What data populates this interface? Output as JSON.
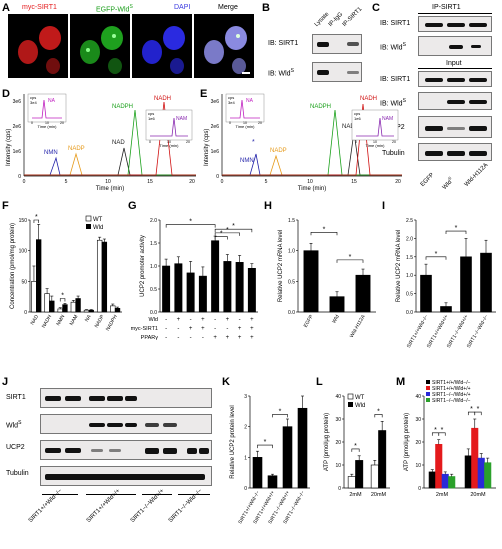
{
  "panels": {
    "A": {
      "letter": "A",
      "labels": [
        "myc-SIRT1",
        "EGFP-Wld",
        "DAPI",
        "Merge"
      ],
      "sup": "S"
    },
    "B": {
      "letter": "B",
      "cols": [
        "Lysate",
        "IP-IgG",
        "IP-SIRT1"
      ],
      "rows": [
        "IB: SIRT1",
        "IB: Wld"
      ],
      "sup": "S"
    },
    "C": {
      "letter": "C",
      "header": "IP-SIRT1",
      "input": "Input",
      "rows": [
        "IB: SIRT1",
        "IB: Wld",
        "IB: SIRT1",
        "IB: Wld",
        "UCP2",
        "Tubulin"
      ],
      "cols": [
        "EGFP",
        "Wld",
        "Wld-H112A"
      ],
      "sup": "S"
    },
    "D": {
      "letter": "D",
      "ylabel": "Intensity (cps)",
      "xlabel": "Time (min)",
      "peaks": [
        "NMN",
        "NADP",
        "NAD",
        "NADPH",
        "NADH"
      ],
      "inset1": {
        "unit": "cps",
        "scale": "3e4",
        "peak": "NA",
        "xlabel": "Time (min)",
        "ticks": [
          "0",
          "10",
          "20"
        ]
      },
      "inset2": {
        "unit": "cps",
        "scale": "1e6",
        "peak": "NAM",
        "xlabel": "Time (min)",
        "ticks": [
          "0",
          "10",
          "20"
        ]
      },
      "yticks": [
        "0",
        "1e6",
        "2e6",
        "3e6"
      ],
      "xticks": [
        "0",
        "5",
        "10",
        "15",
        "20"
      ]
    },
    "E": {
      "letter": "E",
      "ylabel": "Intensity (cps)",
      "xlabel": "Time (min)",
      "peaks": [
        "NMN",
        "NADP",
        "NAD",
        "NADPH",
        "NADH"
      ],
      "inset1": {
        "unit": "cps",
        "scale": "3e4",
        "peak": "NA",
        "xlabel": "Time (min)",
        "ticks": [
          "0",
          "10",
          "20"
        ]
      },
      "inset2": {
        "unit": "cps",
        "scale": "1e6",
        "peak": "NAM",
        "xlabel": "Time (min)",
        "ticks": [
          "0",
          "10",
          "20"
        ]
      },
      "yticks": [
        "0",
        "1e6",
        "2e6",
        "3e6"
      ],
      "xticks": [
        "0",
        "5",
        "10",
        "15",
        "20"
      ],
      "marker": "*"
    },
    "F": {
      "letter": "F",
      "ylabel": "Concentration (pmol/mg protein)",
      "legend": [
        "WT",
        "Wld"
      ],
      "sup": "S",
      "star": "*"
    },
    "G": {
      "letter": "G",
      "ylabel": "UCP2 promoter activity",
      "rowlabels": [
        "Wld",
        "myc-SIRT1",
        "PPARγ"
      ],
      "sup": "S",
      "star": "*"
    },
    "H": {
      "letter": "H",
      "ylabel": "Relative UCP2 mRNA level",
      "star": "*"
    },
    "I": {
      "letter": "I",
      "ylabel": "Relative UCP2 mRNA level",
      "star": "*"
    },
    "J": {
      "letter": "J",
      "rows": [
        "SIRT1",
        "Wld",
        "UCP2",
        "Tubulin"
      ],
      "groups": [
        "SIRT1+/+Wld−/−",
        "SIRT1+/+Wld+/+",
        "SIRT1−/−Wld+/+",
        "SIRT1−/−Wld−/−"
      ],
      "sup": "S"
    },
    "K": {
      "letter": "K",
      "ylabel": "Relative UCP2 protein level",
      "star": "*"
    },
    "L": {
      "letter": "L",
      "ylabel": "ATP (pmol/μg protein)",
      "legend": [
        "WT",
        "Wld"
      ],
      "sup": "S",
      "star": "*"
    },
    "M": {
      "letter": "M",
      "ylabel": "ATP (pmol/μg protein)",
      "legend": [
        "SIRT1+/+/Wld−/−",
        "SIRT1+/+/Wld+/+",
        "SIRT1−/−/Wld+/+",
        "SIRT1−/−/Wld−/−"
      ],
      "colors": [
        "#000000",
        "#e41a1c",
        "#2a2ad8",
        "#2aa02a"
      ],
      "star": "*"
    }
  },
  "chart_data": [
    {
      "type": "bar",
      "panel": "F",
      "categories": [
        "NAD",
        "NADH",
        "NMN",
        "NAM",
        "NA",
        "NADP",
        "NADPH"
      ],
      "ylabel": "Concentration (pmol/mg protein)",
      "ylim": [
        0,
        150
      ],
      "yticks": [
        "0",
        "50",
        "100",
        "150"
      ],
      "series": [
        {
          "name": "WT",
          "values": [
            50,
            30,
            5,
            16,
            3,
            117,
            10
          ],
          "err": [
            25,
            8,
            2,
            3,
            1,
            5,
            3
          ]
        },
        {
          "name": "Wld",
          "values": [
            118,
            18,
            12,
            22,
            3,
            114,
            6
          ],
          "err": [
            25,
            8,
            2,
            4,
            1,
            5,
            2
          ]
        }
      ]
    },
    {
      "type": "bar",
      "panel": "G",
      "ylabel": "UCP2 promoter activity",
      "ylim": [
        0,
        2.0
      ],
      "yticks": [
        "0.0",
        "0.5",
        "1.0",
        "1.5",
        "2.0"
      ],
      "rows": {
        "Wld": [
          "-",
          "+",
          "-",
          "+",
          "-",
          "+",
          "-",
          "+"
        ],
        "myc-SIRT1": [
          "-",
          "-",
          "+",
          "+",
          "-",
          "-",
          "+",
          "+"
        ],
        "PPARγ": [
          "-",
          "-",
          "-",
          "-",
          "+",
          "+",
          "+",
          "+"
        ]
      },
      "values": [
        1.0,
        1.05,
        0.85,
        0.78,
        1.55,
        1.1,
        1.08,
        0.95
      ],
      "err": [
        0.15,
        0.15,
        0.25,
        0.2,
        0.1,
        0.15,
        0.15,
        0.1
      ]
    },
    {
      "type": "bar",
      "panel": "H",
      "categories": [
        "EGFP",
        "Wld",
        "Wld-H112A"
      ],
      "ylabel": "Relative UCP2 mRNA level",
      "ylim": [
        0,
        1.5
      ],
      "yticks": [
        "0.0",
        "0.5",
        "1.0",
        "1.5"
      ],
      "values": [
        1.0,
        0.25,
        0.6
      ],
      "err": [
        0.12,
        0.08,
        0.1
      ]
    },
    {
      "type": "bar",
      "panel": "I",
      "categories": [
        "SIRT1+/+Wld−/−",
        "SIRT1+/+Wld+/+",
        "SIRT1−/−Wld+/+",
        "SIRT1−/−Wld−/−"
      ],
      "ylabel": "Relative UCP2 mRNA level",
      "ylim": [
        0,
        2.5
      ],
      "yticks": [
        "0.0",
        "0.5",
        "1.0",
        "1.5",
        "2.0",
        "2.5"
      ],
      "values": [
        1.0,
        0.15,
        1.5,
        1.6
      ],
      "err": [
        0.3,
        0.1,
        0.5,
        0.35
      ]
    },
    {
      "type": "bar",
      "panel": "K",
      "categories": [
        "SIRT1+/+Wld−/−",
        "SIRT1+/+Wld+/+",
        "SIRT1−/−Wld+/+",
        "SIRT1−/−Wld−/−"
      ],
      "ylabel": "Relative UCP2 protein level",
      "ylim": [
        0,
        3
      ],
      "yticks": [
        "0",
        "1",
        "2",
        "3"
      ],
      "values": [
        1.0,
        0.4,
        2.0,
        2.6
      ],
      "err": [
        0.2,
        0.05,
        0.25,
        0.4
      ]
    },
    {
      "type": "bar",
      "panel": "L",
      "categories": [
        "2mM",
        "20mM"
      ],
      "ylabel": "ATP (pmol/μg protein)",
      "ylim": [
        0,
        40
      ],
      "yticks": [
        "0",
        "10",
        "20",
        "30",
        "40"
      ],
      "series": [
        {
          "name": "WT",
          "values": [
            5,
            10
          ],
          "err": [
            1,
            2
          ]
        },
        {
          "name": "Wld",
          "values": [
            12,
            25
          ],
          "err": [
            2,
            4
          ]
        }
      ]
    },
    {
      "type": "bar",
      "panel": "M",
      "categories": [
        "2mM",
        "20mM"
      ],
      "ylabel": "ATP (pmol/μg protein)",
      "ylim": [
        0,
        40
      ],
      "yticks": [
        "0",
        "10",
        "20",
        "30",
        "40"
      ],
      "series": [
        {
          "name": "SIRT1+/+/Wld−/−",
          "values": [
            7,
            14
          ],
          "err": [
            1,
            3
          ]
        },
        {
          "name": "SIRT1+/+/Wld+/+",
          "values": [
            19,
            26
          ],
          "err": [
            2,
            4
          ]
        },
        {
          "name": "SIRT1−/−/Wld+/+",
          "values": [
            6,
            13
          ],
          "err": [
            1,
            2
          ]
        },
        {
          "name": "SIRT1−/−/Wld−/−",
          "values": [
            5,
            11
          ],
          "err": [
            1,
            2
          ]
        }
      ]
    }
  ]
}
